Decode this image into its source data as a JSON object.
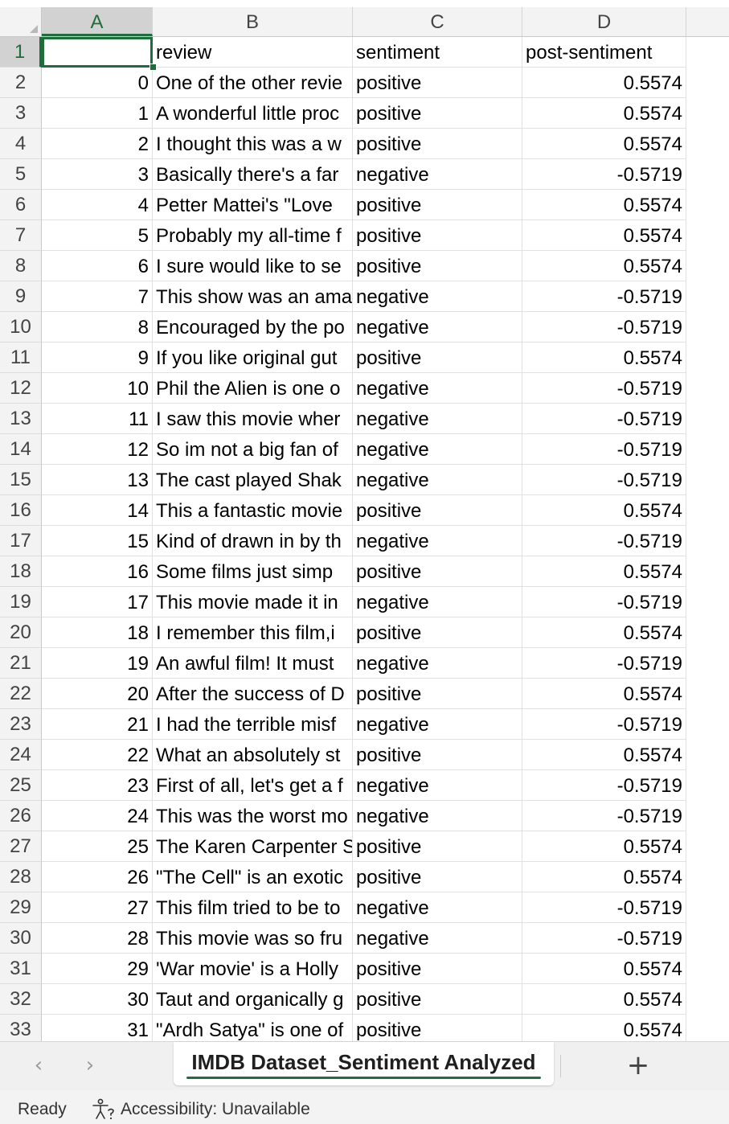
{
  "column_headers": [
    "A",
    "B",
    "C",
    "D"
  ],
  "selected_column": "A",
  "header_row": {
    "row_number": "1",
    "cells": [
      "",
      "review",
      "sentiment",
      "post-sentiment"
    ]
  },
  "rows": [
    {
      "row_number": "2",
      "index": "0",
      "review": "One of the other revie",
      "sentiment": "positive",
      "post_sentiment": "0.5574"
    },
    {
      "row_number": "3",
      "index": "1",
      "review": "A wonderful little proc",
      "sentiment": "positive",
      "post_sentiment": "0.5574"
    },
    {
      "row_number": "4",
      "index": "2",
      "review": "I thought this was a w",
      "sentiment": "positive",
      "post_sentiment": "0.5574"
    },
    {
      "row_number": "5",
      "index": "3",
      "review": "Basically there's a far",
      "sentiment": "negative",
      "post_sentiment": "-0.5719"
    },
    {
      "row_number": "6",
      "index": "4",
      "review": "Petter Mattei's \"Love",
      "sentiment": "positive",
      "post_sentiment": "0.5574"
    },
    {
      "row_number": "7",
      "index": "5",
      "review": "Probably my all-time f",
      "sentiment": "positive",
      "post_sentiment": "0.5574"
    },
    {
      "row_number": "8",
      "index": "6",
      "review": "I sure would like to se",
      "sentiment": "positive",
      "post_sentiment": "0.5574"
    },
    {
      "row_number": "9",
      "index": "7",
      "review": "This show was an ama",
      "sentiment": "negative",
      "post_sentiment": "-0.5719"
    },
    {
      "row_number": "10",
      "index": "8",
      "review": "Encouraged by the po",
      "sentiment": "negative",
      "post_sentiment": "-0.5719"
    },
    {
      "row_number": "11",
      "index": "9",
      "review": "If you like original gut",
      "sentiment": "positive",
      "post_sentiment": "0.5574"
    },
    {
      "row_number": "12",
      "index": "10",
      "review": "Phil the Alien is one o",
      "sentiment": "negative",
      "post_sentiment": "-0.5719"
    },
    {
      "row_number": "13",
      "index": "11",
      "review": "I saw this movie wher",
      "sentiment": "negative",
      "post_sentiment": "-0.5719"
    },
    {
      "row_number": "14",
      "index": "12",
      "review": "So im not a big fan of",
      "sentiment": "negative",
      "post_sentiment": "-0.5719"
    },
    {
      "row_number": "15",
      "index": "13",
      "review": "The cast played Shak",
      "sentiment": "negative",
      "post_sentiment": "-0.5719"
    },
    {
      "row_number": "16",
      "index": "14",
      "review": "This a fantastic movie",
      "sentiment": "positive",
      "post_sentiment": "0.5574"
    },
    {
      "row_number": "17",
      "index": "15",
      "review": "Kind of drawn in by th",
      "sentiment": "negative",
      "post_sentiment": "-0.5719"
    },
    {
      "row_number": "18",
      "index": "16",
      "review": "Some films just simp",
      "sentiment": "positive",
      "post_sentiment": "0.5574"
    },
    {
      "row_number": "19",
      "index": "17",
      "review": "This movie made it in",
      "sentiment": "negative",
      "post_sentiment": "-0.5719"
    },
    {
      "row_number": "20",
      "index": "18",
      "review": "I remember this film,i",
      "sentiment": "positive",
      "post_sentiment": "0.5574"
    },
    {
      "row_number": "21",
      "index": "19",
      "review": "An awful film! It must",
      "sentiment": "negative",
      "post_sentiment": "-0.5719"
    },
    {
      "row_number": "22",
      "index": "20",
      "review": "After the success of D",
      "sentiment": "positive",
      "post_sentiment": "0.5574"
    },
    {
      "row_number": "23",
      "index": "21",
      "review": "I had the terrible misf",
      "sentiment": "negative",
      "post_sentiment": "-0.5719"
    },
    {
      "row_number": "24",
      "index": "22",
      "review": "What an absolutely st",
      "sentiment": "positive",
      "post_sentiment": "0.5574"
    },
    {
      "row_number": "25",
      "index": "23",
      "review": "First of all, let's get a f",
      "sentiment": "negative",
      "post_sentiment": "-0.5719"
    },
    {
      "row_number": "26",
      "index": "24",
      "review": "This was the worst mo",
      "sentiment": "negative",
      "post_sentiment": "-0.5719"
    },
    {
      "row_number": "27",
      "index": "25",
      "review": "The Karen Carpenter S",
      "sentiment": "positive",
      "post_sentiment": "0.5574"
    },
    {
      "row_number": "28",
      "index": "26",
      "review": "\"The Cell\" is an exotic",
      "sentiment": "positive",
      "post_sentiment": "0.5574"
    },
    {
      "row_number": "29",
      "index": "27",
      "review": "This film tried to be to",
      "sentiment": "negative",
      "post_sentiment": "-0.5719"
    },
    {
      "row_number": "30",
      "index": "28",
      "review": "This movie was so fru",
      "sentiment": "negative",
      "post_sentiment": "-0.5719"
    },
    {
      "row_number": "31",
      "index": "29",
      "review": "'War movie' is a Holly",
      "sentiment": "positive",
      "post_sentiment": "0.5574"
    },
    {
      "row_number": "32",
      "index": "30",
      "review": "Taut and organically g",
      "sentiment": "positive",
      "post_sentiment": "0.5574"
    },
    {
      "row_number": "33",
      "index": "31",
      "review": "\"Ardh Satya\" is one of",
      "sentiment": "positive",
      "post_sentiment": "0.5574"
    }
  ],
  "sheet_tabs": {
    "prev_icon": "chevron-left-icon",
    "next_icon": "chevron-right-icon",
    "prev_glyph": "‹",
    "next_glyph": "›",
    "active_tab": "IMDB Dataset_Sentiment Analyzed",
    "add_glyph": "+",
    "add_icon": "plus-icon"
  },
  "status_bar": {
    "ready": "Ready",
    "accessibility": "Accessibility: Unavailable",
    "accessibility_icon": "accessibility-icon"
  },
  "colors": {
    "accent": "#1e6e3c",
    "header_bg": "#f3f3f3",
    "selected_header_bg": "#d2d2d2"
  }
}
